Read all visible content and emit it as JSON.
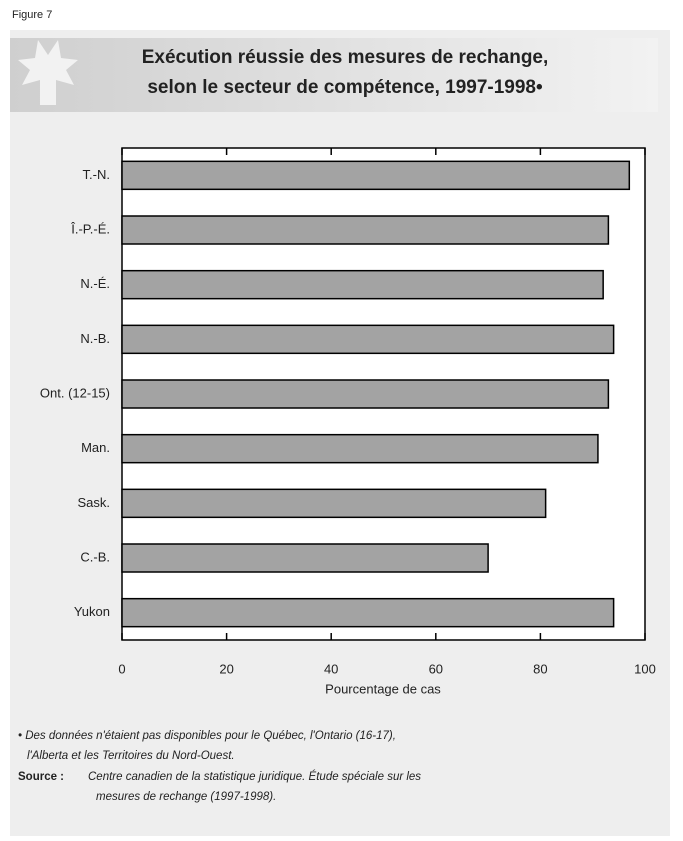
{
  "chart_data": {
    "type": "bar",
    "orientation": "horizontal",
    "figure_label": "Figure 7",
    "title": [
      "Exécution réussie des mesures de rechange,",
      "selon le secteur de compétence, 1997-1998•"
    ],
    "categories": [
      "T.-N.",
      "Î.-P.-É.",
      "N.-É.",
      "N.-B.",
      "Ont. (12-15)",
      "Man.",
      "Sask.",
      "C.-B.",
      "Yukon"
    ],
    "values": [
      97,
      93,
      92,
      94,
      93,
      91,
      81,
      70,
      94
    ],
    "color": "#a3a3a3",
    "xlim": [
      0,
      100
    ],
    "xticks": [
      0,
      20,
      40,
      60,
      80,
      100
    ],
    "xlabel": "Pourcentage de cas",
    "footnote": [
      "• Des données n'étaient pas disponibles pour le Québec, l'Ontario (16-17),",
      "l'Alberta et les Territoires du Nord-Ouest."
    ],
    "source_label": "Source :",
    "source": [
      "Centre canadien de la statistique juridique.  Étude spéciale sur les",
      "mesures de rechange (1997-1998)."
    ]
  }
}
